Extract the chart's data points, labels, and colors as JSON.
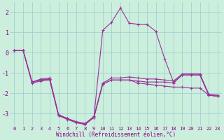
{
  "xlabel": "Windchill (Refroidissement éolien,°C)",
  "bg_color": "#cceedd",
  "grid_color": "#99cccc",
  "line_color": "#993399",
  "xlim": [
    -0.5,
    23.5
  ],
  "ylim": [
    -3.6,
    2.5
  ],
  "yticks": [
    -3,
    -2,
    -1,
    0,
    1,
    2
  ],
  "xticks": [
    0,
    1,
    2,
    3,
    4,
    5,
    6,
    7,
    8,
    9,
    10,
    11,
    12,
    13,
    14,
    15,
    16,
    17,
    18,
    19,
    20,
    21,
    22,
    23
  ],
  "series": [
    [
      0.1,
      0.1,
      -1.45,
      -1.3,
      -1.25,
      -3.05,
      -3.25,
      -3.4,
      -3.5,
      -3.15,
      -1.5,
      -1.25,
      -1.25,
      -1.2,
      -1.25,
      -1.3,
      -1.3,
      -1.35,
      -1.4,
      -1.05,
      -1.05,
      -1.05,
      -2.05,
      -2.1
    ],
    [
      0.1,
      0.1,
      -1.45,
      -1.35,
      -1.3,
      -3.1,
      -3.3,
      -3.45,
      -3.55,
      -3.2,
      -1.55,
      -1.35,
      -1.35,
      -1.35,
      -1.4,
      -1.45,
      -1.45,
      -1.45,
      -1.5,
      -1.1,
      -1.1,
      -1.1,
      -2.1,
      -2.15
    ],
    [
      0.1,
      0.1,
      -1.5,
      -1.4,
      -1.35,
      -3.1,
      -3.25,
      -3.45,
      -3.5,
      -3.2,
      -1.55,
      -1.35,
      -1.35,
      -1.35,
      -1.5,
      -1.55,
      -1.6,
      -1.65,
      -1.7,
      -1.7,
      -1.75,
      -1.75,
      -2.1,
      -2.15
    ],
    [
      0.1,
      0.1,
      -1.45,
      -1.35,
      -1.3,
      -3.1,
      -3.25,
      -3.45,
      -3.5,
      -3.2,
      1.1,
      1.5,
      2.2,
      1.45,
      1.4,
      1.4,
      1.05,
      -0.3,
      -1.45,
      -1.1,
      -1.1,
      -1.1,
      -2.1,
      -2.15
    ]
  ]
}
